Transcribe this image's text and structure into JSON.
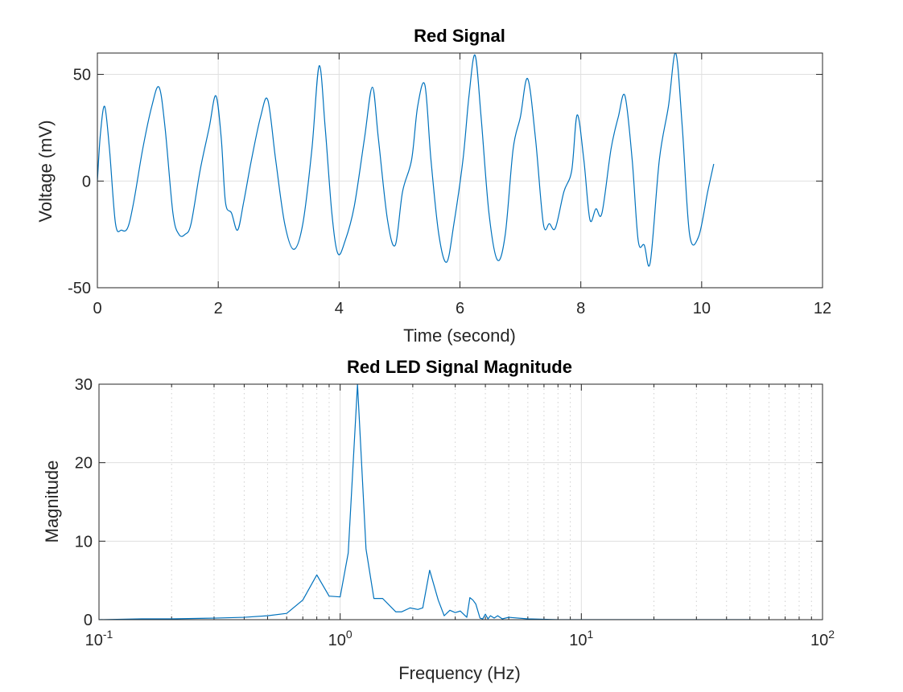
{
  "chart_data": [
    {
      "type": "line",
      "title": "Red Signal",
      "xlabel": "Time (second)",
      "ylabel": "Voltage (mV)",
      "xlim": [
        0,
        12
      ],
      "ylim": [
        -50,
        60
      ],
      "xticks": [
        0,
        2,
        4,
        6,
        8,
        10,
        12
      ],
      "xtick_labels": [
        "0",
        "2",
        "4",
        "6",
        "8",
        "10",
        "12"
      ],
      "yticks": [
        -50,
        0,
        50
      ],
      "ytick_labels": [
        "-50",
        "0",
        "50"
      ],
      "grid": true,
      "line_color": "#0072BD",
      "series": [
        {
          "x": [
            0,
            0.05,
            0.12,
            0.2,
            0.3,
            0.4,
            0.5,
            0.6,
            0.75,
            0.9,
            1.02,
            1.12,
            1.25,
            1.35,
            1.45,
            1.55,
            1.7,
            1.85,
            1.96,
            2.05,
            2.12,
            2.22,
            2.32,
            2.42,
            2.55,
            2.7,
            2.82,
            2.95,
            3.1,
            3.25,
            3.4,
            3.55,
            3.67,
            3.77,
            3.88,
            3.98,
            4.1,
            4.25,
            4.42,
            4.55,
            4.65,
            4.8,
            4.93,
            5.05,
            5.2,
            5.3,
            5.42,
            5.52,
            5.65,
            5.78,
            5.9,
            6.05,
            6.15,
            6.25,
            6.35,
            6.48,
            6.62,
            6.75,
            6.88,
            7.0,
            7.12,
            7.25,
            7.38,
            7.48,
            7.58,
            7.72,
            7.85,
            7.94,
            8.05,
            8.15,
            8.25,
            8.35,
            8.5,
            8.62,
            8.73,
            8.85,
            8.95,
            9.05,
            9.15,
            9.3,
            9.45,
            9.57,
            9.68,
            9.8,
            9.95,
            10.1,
            10.2
          ],
          "y": [
            0,
            22,
            35,
            15,
            -20,
            -23,
            -22,
            -10,
            15,
            35,
            44,
            25,
            -15,
            -25,
            -25,
            -20,
            5,
            25,
            40,
            20,
            -10,
            -15,
            -23,
            -10,
            10,
            30,
            38,
            10,
            -20,
            -32,
            -20,
            15,
            54,
            25,
            -15,
            -34,
            -28,
            -12,
            20,
            44,
            20,
            -18,
            -30,
            -5,
            10,
            35,
            45,
            10,
            -25,
            -38,
            -20,
            10,
            40,
            59,
            30,
            -15,
            -37,
            -25,
            15,
            30,
            48,
            20,
            -20,
            -20,
            -22,
            -5,
            5,
            31,
            10,
            -18,
            -13,
            -15,
            15,
            30,
            40,
            10,
            -28,
            -30,
            -38,
            10,
            35,
            60,
            25,
            -25,
            -26,
            -5,
            8
          ]
        }
      ]
    },
    {
      "type": "line",
      "title": "Red LED Signal Magnitude",
      "xlabel": "Frequency (Hz)",
      "ylabel": "Magnitude",
      "xscale": "log",
      "xlim": [
        0.1,
        100
      ],
      "ylim": [
        0,
        30
      ],
      "xticks": [
        0.1,
        1,
        10,
        100
      ],
      "xtick_labels": [
        {
          "base": "10",
          "exp": "-1"
        },
        {
          "base": "10",
          "exp": "0"
        },
        {
          "base": "10",
          "exp": "1"
        },
        {
          "base": "10",
          "exp": "2"
        }
      ],
      "yticks": [
        0,
        10,
        20,
        30
      ],
      "ytick_labels": [
        "0",
        "10",
        "20",
        "30"
      ],
      "grid": true,
      "minor_grid": true,
      "line_color": "#0072BD",
      "series": [
        {
          "x": [
            0.1,
            0.15,
            0.2,
            0.3,
            0.4,
            0.5,
            0.6,
            0.7,
            0.8,
            0.9,
            1.0,
            1.08,
            1.18,
            1.28,
            1.38,
            1.5,
            1.7,
            1.8,
            1.95,
            2.1,
            2.2,
            2.35,
            2.55,
            2.7,
            2.85,
            3.0,
            3.15,
            3.35,
            3.45,
            3.55,
            3.65,
            3.8,
            3.9,
            4.0,
            4.1,
            4.2,
            4.35,
            4.5,
            4.7,
            5.0,
            6,
            8,
            10,
            20,
            50
          ],
          "y": [
            0,
            0.1,
            0.1,
            0.2,
            0.3,
            0.5,
            0.8,
            2.5,
            5.7,
            3.0,
            2.9,
            8.5,
            30,
            9.0,
            2.7,
            2.7,
            1.0,
            1.0,
            1.5,
            1.3,
            1.5,
            6.3,
            2.5,
            0.5,
            1.2,
            0.9,
            1.1,
            0.3,
            2.8,
            2.5,
            2.0,
            0.2,
            0.1,
            0.7,
            0.1,
            0.5,
            0.2,
            0.5,
            0.1,
            0.3,
            0.1,
            0,
            0,
            0,
            0
          ]
        }
      ]
    }
  ]
}
